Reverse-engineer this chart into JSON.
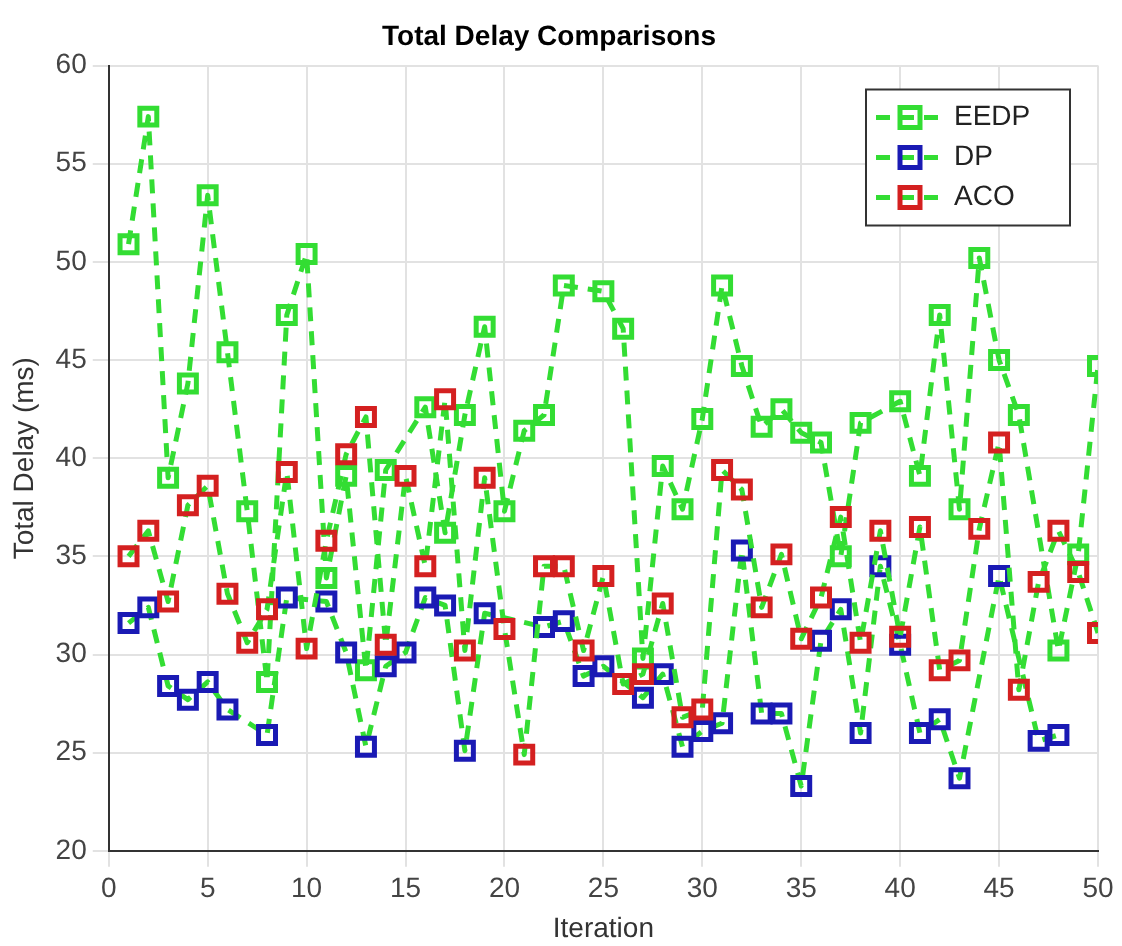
{
  "chart_data": {
    "type": "line",
    "title": "Total Delay Comparisons",
    "xlabel": "Iteration",
    "ylabel": "Total Delay (ms)",
    "x": [
      1,
      2,
      3,
      4,
      5,
      6,
      7,
      8,
      9,
      10,
      11,
      12,
      13,
      14,
      15,
      16,
      17,
      18,
      19,
      20,
      21,
      22,
      23,
      24,
      25,
      26,
      27,
      28,
      29,
      30,
      31,
      32,
      33,
      34,
      35,
      36,
      37,
      38,
      39,
      40,
      41,
      42,
      43,
      44,
      45,
      46,
      47,
      48,
      49,
      50
    ],
    "xlim": [
      0,
      50
    ],
    "xticks": [
      0,
      5,
      10,
      15,
      20,
      25,
      30,
      35,
      40,
      45,
      50
    ],
    "ylim": [
      20,
      60
    ],
    "yticks": [
      20,
      25,
      30,
      35,
      40,
      45,
      50,
      55,
      60
    ],
    "grid": true,
    "legend": "top right",
    "marker": "square",
    "line_style": "dashed",
    "series": [
      {
        "name": "EEDP",
        "color": "#33dd33",
        "values": [
          50.9,
          57.4,
          39.0,
          43.8,
          53.4,
          45.4,
          37.3,
          28.6,
          47.3,
          50.4,
          33.9,
          39.1,
          29.2,
          39.4,
          null,
          42.6,
          36.2,
          42.2,
          46.7,
          37.3,
          41.4,
          42.2,
          48.8,
          null,
          48.5,
          46.6,
          29.8,
          39.6,
          37.4,
          42.0,
          48.8,
          44.7,
          41.6,
          42.5,
          41.3,
          40.8,
          35.0,
          41.8,
          null,
          42.9,
          39.1,
          47.3,
          37.4,
          50.2,
          45.0,
          42.2,
          null,
          30.2,
          35.1,
          44.7
        ]
      },
      {
        "name": "DP",
        "color": "#1a1ab4",
        "values": [
          31.6,
          32.4,
          28.4,
          27.7,
          28.6,
          27.2,
          null,
          25.9,
          32.9,
          null,
          32.7,
          30.1,
          25.3,
          29.4,
          30.1,
          32.9,
          32.5,
          25.1,
          32.1,
          null,
          null,
          31.4,
          31.7,
          28.9,
          29.4,
          null,
          27.8,
          29.0,
          25.3,
          26.1,
          26.5,
          35.3,
          27.0,
          27.0,
          23.3,
          30.7,
          32.3,
          26.0,
          34.5,
          30.5,
          26.0,
          26.7,
          23.7,
          null,
          34.0,
          null,
          25.6,
          25.9,
          null,
          null
        ]
      },
      {
        "name": "ACO",
        "color": "#d42020",
        "values": [
          35.0,
          36.3,
          32.7,
          37.6,
          38.6,
          33.1,
          30.6,
          32.3,
          39.3,
          30.3,
          35.8,
          40.2,
          42.1,
          30.5,
          39.1,
          34.5,
          43.0,
          30.2,
          39.0,
          31.3,
          24.9,
          34.5,
          34.5,
          30.2,
          34.0,
          28.5,
          29.0,
          32.6,
          26.8,
          27.2,
          39.4,
          38.4,
          32.4,
          35.1,
          30.8,
          32.9,
          37.0,
          30.6,
          36.3,
          30.9,
          36.5,
          29.2,
          29.7,
          36.4,
          40.8,
          28.2,
          33.7,
          36.3,
          34.2,
          31.1
        ]
      }
    ]
  }
}
